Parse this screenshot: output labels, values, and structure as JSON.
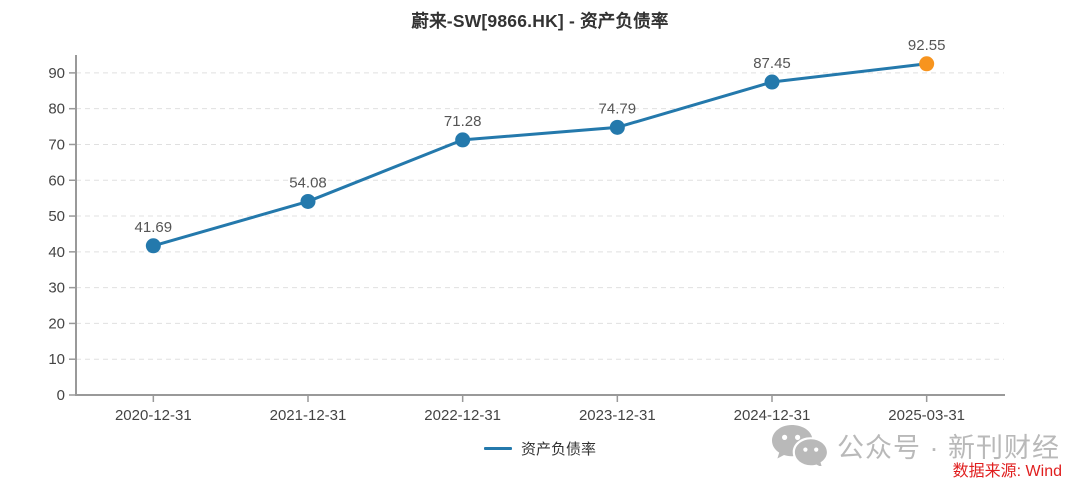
{
  "title": "蔚来-SW[9866.HK] - 资产负债率",
  "chart_data": {
    "type": "line",
    "title": "蔚来-SW[9866.HK] - 资产负债率",
    "categories": [
      "2020-12-31",
      "2021-12-31",
      "2022-12-31",
      "2023-12-31",
      "2024-12-31",
      "2025-03-31"
    ],
    "series": [
      {
        "name": "资产负债率",
        "values": [
          41.69,
          54.08,
          71.28,
          74.79,
          87.45,
          92.55
        ]
      }
    ],
    "value_labels": [
      "41.69",
      "54.08",
      "71.28",
      "74.79",
      "87.45",
      "92.55"
    ],
    "yticks": [
      0,
      10,
      20,
      30,
      40,
      50,
      60,
      70,
      80,
      90
    ],
    "ylim": [
      0,
      95
    ],
    "xlabel": "",
    "ylabel": "",
    "grid": "horizontal-dashed",
    "legend_position": "bottom-center"
  },
  "legend": {
    "label": "资产负债率"
  },
  "watermark": {
    "icon": "wechat-icon",
    "text": "公众号 · 新刊财经"
  },
  "source": {
    "label": "数据来源: Wind"
  },
  "colors": {
    "line": "#2479ac",
    "point": "#2479ac",
    "last_point": "#f7941e",
    "axis": "#999999",
    "gridline": "#e0e0e0",
    "tick_label": "#444444",
    "value_label": "#555555",
    "title": "#333333",
    "watermark": "#b9b9b9",
    "source": "#e01f1f"
  }
}
